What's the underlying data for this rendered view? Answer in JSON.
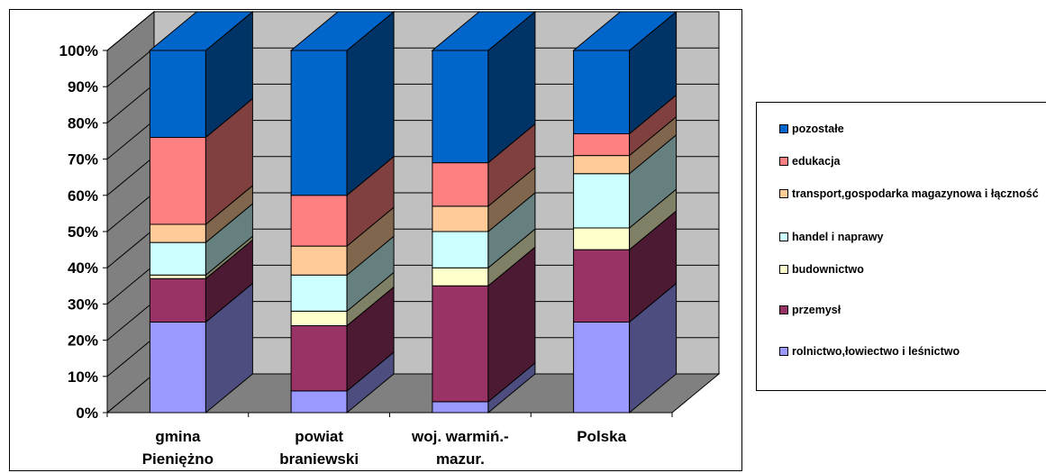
{
  "chart_data": {
    "type": "bar",
    "stacked": true,
    "percent_stacked": true,
    "three_d": true,
    "title": "",
    "xlabel": "",
    "ylabel": "",
    "ylim": [
      0,
      100
    ],
    "yticks": [
      "0%",
      "10%",
      "20%",
      "30%",
      "40%",
      "50%",
      "60%",
      "70%",
      "80%",
      "90%",
      "100%"
    ],
    "grid": true,
    "legend_position": "right",
    "categories": [
      [
        "gmina",
        "Pieniężno"
      ],
      [
        "powiat",
        "braniewski"
      ],
      [
        "woj. warmiń.-",
        "mazur."
      ],
      [
        "Polska"
      ]
    ],
    "series": [
      {
        "name": "rolnictwo,łowiectwo i leśnictwo",
        "color": "#9999FF",
        "values": [
          25,
          6,
          3,
          25
        ]
      },
      {
        "name": "przemysł",
        "color": "#993366",
        "values": [
          12,
          18,
          32,
          20
        ]
      },
      {
        "name": "budownictwo",
        "color": "#FFFFCC",
        "values": [
          1,
          4,
          5,
          6
        ]
      },
      {
        "name": "handel i naprawy",
        "color": "#CCFFFF",
        "values": [
          9,
          10,
          10,
          15
        ]
      },
      {
        "name": "transport,gospodarka magazynowa i łączność",
        "color": "#FFCC99",
        "values": [
          5,
          8,
          7,
          5
        ]
      },
      {
        "name": "edukacja",
        "color": "#FF8080",
        "values": [
          24,
          14,
          12,
          6
        ]
      },
      {
        "name": "pozostałe",
        "color": "#0066CC",
        "values": [
          24,
          40,
          31,
          23
        ]
      }
    ],
    "legend_order": [
      6,
      5,
      4,
      3,
      2,
      1,
      0
    ]
  }
}
